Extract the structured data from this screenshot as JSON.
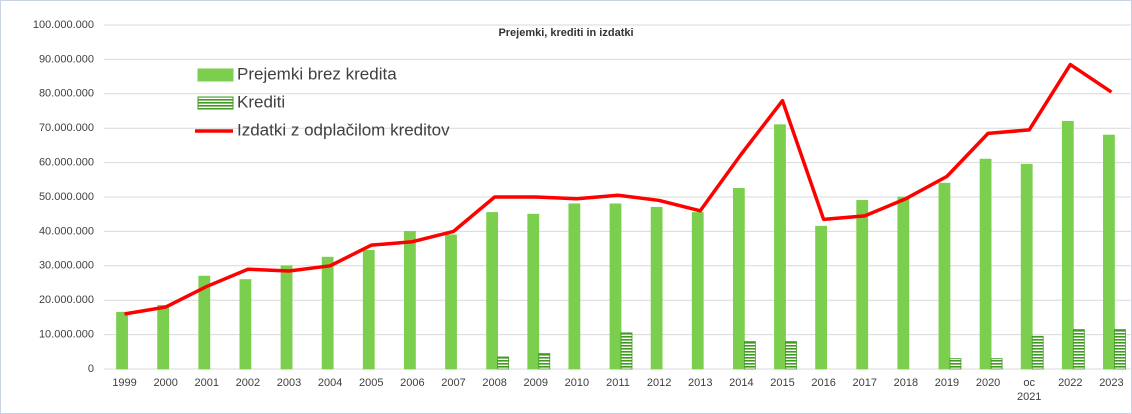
{
  "chart_data": {
    "type": "bar",
    "title": "Prejemki, krediti in izdatki",
    "categories": [
      "1999",
      "2000",
      "2001",
      "2002",
      "2003",
      "2004",
      "2005",
      "2006",
      "2007",
      "2008",
      "2009",
      "2010",
      "2011",
      "2012",
      "2013",
      "2014",
      "2015",
      "2016",
      "2017",
      "2018",
      "2019",
      "2020",
      "oc 2021",
      "2022",
      "2023"
    ],
    "series": [
      {
        "name": "Prejemki brez kredita",
        "color": "#7ccf4e",
        "kind": "bar",
        "values": [
          16500000,
          18500000,
          27000000,
          26000000,
          30000000,
          32500000,
          34500000,
          40000000,
          39000000,
          45500000,
          45000000,
          48000000,
          48000000,
          47000000,
          45500000,
          52500000,
          71000000,
          41500000,
          49000000,
          50000000,
          54000000,
          61000000,
          59500000,
          72000000,
          68000000
        ]
      },
      {
        "name": "Krediti",
        "color": "#3f9a1f",
        "kind": "bar",
        "pattern": "horizontal-stripes",
        "values": [
          0,
          0,
          0,
          0,
          0,
          0,
          0,
          0,
          0,
          3500000,
          4500000,
          0,
          10500000,
          0,
          0,
          8000000,
          8000000,
          0,
          0,
          0,
          3000000,
          3000000,
          9500000,
          11500000,
          11500000
        ]
      },
      {
        "name": "Izdatki z odplačilom kreditov",
        "color": "#ff0000",
        "kind": "line",
        "values": [
          16000000,
          18000000,
          24000000,
          29000000,
          28500000,
          30000000,
          36000000,
          37000000,
          40000000,
          50000000,
          50000000,
          49500000,
          50500000,
          49000000,
          46000000,
          62500000,
          78000000,
          43500000,
          44500000,
          49500000,
          56000000,
          68500000,
          69500000,
          88500000,
          80500000
        ]
      }
    ],
    "ylim": [
      0,
      100000000
    ],
    "yticks": [
      0,
      {
        "value": 10000000,
        "label": "10.000.000"
      },
      {
        "value": 20000000,
        "label": "20.000.000"
      },
      {
        "value": 30000000,
        "label": "30.000.000"
      },
      {
        "value": 40000000,
        "label": "40.000.000"
      },
      {
        "value": 50000000,
        "label": "50.000.000"
      },
      {
        "value": 60000000,
        "label": "60.000.000"
      },
      {
        "value": 70000000,
        "label": "70.000.000"
      },
      {
        "value": 80000000,
        "label": "80.000.000"
      },
      {
        "value": 90000000,
        "label": "90.000.000"
      },
      {
        "value": 100000000,
        "label": "100.000.000"
      }
    ],
    "grid": true
  }
}
